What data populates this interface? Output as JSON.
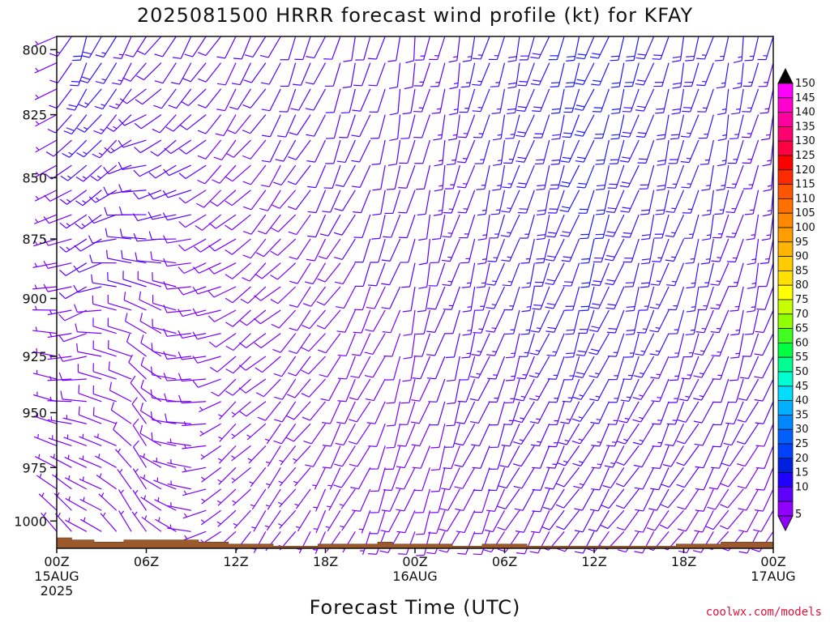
{
  "chart_data": {
    "type": "wind-barb-profile",
    "title": "2025081500 HRRR forecast wind profile (kt) for KFAY",
    "xlabel": "Forecast Time (UTC)",
    "ylabel": "",
    "credit": "coolwx.com/models",
    "x_range_hours": [
      0,
      48
    ],
    "y_range_hpa": [
      1013,
      795
    ],
    "y_ticks": [
      "800",
      "825",
      "850",
      "875",
      "900",
      "925",
      "950",
      "975",
      "1000"
    ],
    "y_tick_values": [
      800,
      825,
      850,
      875,
      900,
      925,
      950,
      975,
      1000
    ],
    "x_ticks": [
      {
        "hour": 0,
        "lines": [
          "00Z",
          "15AUG",
          "2025"
        ]
      },
      {
        "hour": 6,
        "lines": [
          "06Z"
        ]
      },
      {
        "hour": 12,
        "lines": [
          "12Z"
        ]
      },
      {
        "hour": 18,
        "lines": [
          "18Z"
        ]
      },
      {
        "hour": 24,
        "lines": [
          "00Z",
          "16AUG"
        ]
      },
      {
        "hour": 30,
        "lines": [
          "06Z"
        ]
      },
      {
        "hour": 36,
        "lines": [
          "12Z"
        ]
      },
      {
        "hour": 42,
        "lines": [
          "18Z"
        ]
      },
      {
        "hour": 48,
        "lines": [
          "00Z",
          "17AUG"
        ]
      }
    ],
    "barb_levels_hpa": [
      795,
      805,
      815,
      825,
      835,
      845,
      855,
      865,
      875,
      885,
      895,
      905,
      915,
      925,
      935,
      945,
      955,
      965,
      975,
      985,
      995,
      1005
    ],
    "wind_samples": [
      {
        "hour": 0,
        "u": 0,
        "s": {
          "800": 5,
          "900": 5,
          "1000": 4
        },
        "d": {
          "800": 240,
          "900": 260,
          "1000": 320
        }
      },
      {
        "hour": 2,
        "u": 1,
        "s": {
          "800": 20,
          "900": 10,
          "1000": 5
        },
        "d": {
          "800": 200,
          "900": 250,
          "1000": 300
        }
      },
      {
        "hour": 6,
        "u": 2,
        "s": {
          "800": 12,
          "900": 10,
          "1000": 7
        },
        "d": {
          "800": 215,
          "900": 300,
          "1000": 330
        }
      },
      {
        "hour": 12,
        "u": 3,
        "s": {
          "800": 10,
          "900": 9,
          "1000": 5
        },
        "d": {
          "800": 210,
          "900": 240,
          "1000": 220
        }
      },
      {
        "hour": 24,
        "u": 4,
        "s": {
          "800": 12,
          "900": 10,
          "1000": 8
        },
        "d": {
          "800": 190,
          "900": 195,
          "1000": 200
        }
      },
      {
        "hour": 36,
        "u": 5,
        "s": {
          "800": 22,
          "900": 20,
          "1000": 10
        },
        "d": {
          "800": 200,
          "900": 200,
          "1000": 215
        }
      },
      {
        "hour": 48,
        "u": 6,
        "s": {
          "800": 15,
          "900": 12,
          "1000": 8
        },
        "d": {
          "800": 190,
          "900": 195,
          "1000": 215
        }
      }
    ],
    "surface_pressure": [
      {
        "hour": 0,
        "p": 1008
      },
      {
        "hour": 1,
        "p": 1009
      },
      {
        "hour": 2.5,
        "p": 1010
      },
      {
        "hour": 4.5,
        "p": 1009
      },
      {
        "hour": 9.5,
        "p": 1010
      },
      {
        "hour": 11.5,
        "p": 1011
      },
      {
        "hour": 14.5,
        "p": 1012
      },
      {
        "hour": 17.5,
        "p": 1011
      },
      {
        "hour": 21.5,
        "p": 1010
      },
      {
        "hour": 22.5,
        "p": 1011
      },
      {
        "hour": 26.5,
        "p": 1012
      },
      {
        "hour": 28.5,
        "p": 1011
      },
      {
        "hour": 31.5,
        "p": 1012
      },
      {
        "hour": 41.5,
        "p": 1011
      },
      {
        "hour": 44.5,
        "p": 1010
      },
      {
        "hour": 48,
        "p": 1010
      }
    ],
    "colorbar": {
      "labels": [
        "150",
        "145",
        "140",
        "135",
        "130",
        "125",
        "120",
        "115",
        "110",
        "105",
        "100",
        "95",
        "90",
        "85",
        "80",
        "75",
        "70",
        "65",
        "60",
        "55",
        "50",
        "45",
        "40",
        "35",
        "30",
        "25",
        "20",
        "15",
        "10",
        "5"
      ],
      "colors": [
        "#ff00ff",
        "#ff00d0",
        "#ff00a0",
        "#ff0070",
        "#ff0040",
        "#ff0000",
        "#ff2a00",
        "#ff5500",
        "#ff7000",
        "#ff8800",
        "#ff9c00",
        "#ffb400",
        "#ffcc00",
        "#ffe000",
        "#ffff00",
        "#c8ff00",
        "#90ff00",
        "#40ff20",
        "#00ff40",
        "#00ff90",
        "#00ffd0",
        "#00ddff",
        "#00b0ff",
        "#0088ff",
        "#0060ff",
        "#0040ff",
        "#0020e0",
        "#2000ff",
        "#6000ff",
        "#9000ff"
      ],
      "top_color": "#000000",
      "bottom_color": "#9000ff"
    },
    "ground_color": "#9c5a2c",
    "grid": false,
    "legend": "right-colorbar"
  }
}
